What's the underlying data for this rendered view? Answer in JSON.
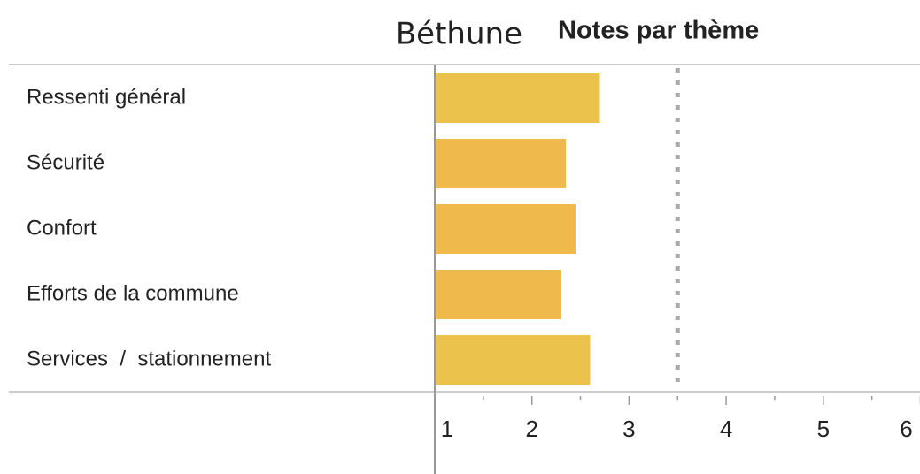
{
  "chart_data": {
    "type": "bar",
    "orientation": "horizontal",
    "title": "Béthune",
    "subtitle": "Notes par thème",
    "categories": [
      "Ressenti général",
      "Sécurité",
      "Confort",
      "Efforts de la commune",
      "Services  /  stationnement"
    ],
    "values": [
      2.7,
      2.35,
      2.45,
      2.3,
      2.6
    ],
    "colors": [
      "#ebc24b",
      "#f0b94b",
      "#f0b94b",
      "#f0b94b",
      "#ebc24b"
    ],
    "xlim": [
      1,
      6
    ],
    "xticks": [
      1,
      2,
      3,
      4,
      5,
      6
    ],
    "minor_xticks": [
      1.5,
      2.5,
      3.5,
      4.5,
      5.5
    ],
    "reference": 3.5
  }
}
